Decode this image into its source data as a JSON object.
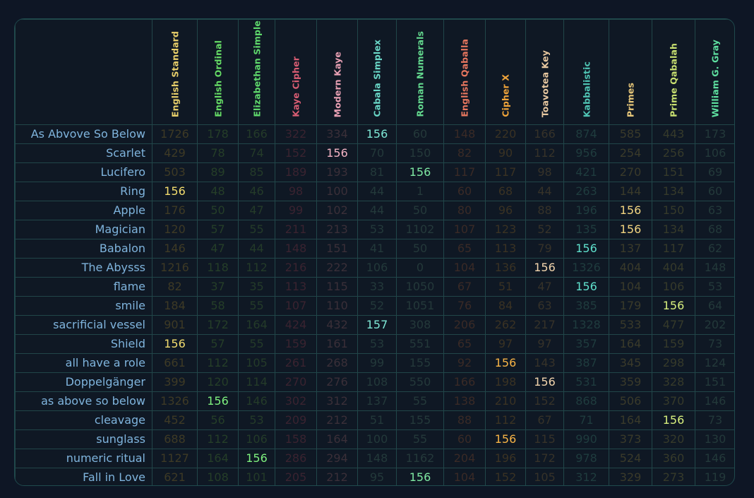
{
  "columns": [
    {
      "name": "English Standard",
      "color": "#e8cf6a",
      "dim": "#3e3a25",
      "hi": "#f2dc6e"
    },
    {
      "name": "English Ordinal",
      "color": "#66dd66",
      "dim": "#253e28",
      "hi": "#7ef07e"
    },
    {
      "name": "Elizabethan Simple",
      "color": "#5fd96c",
      "dim": "#243b29",
      "hi": "#7ef07e"
    },
    {
      "name": "Kaye Cipher",
      "color": "#d85d73",
      "dim": "#3a2330",
      "hi": "#e86b82"
    },
    {
      "name": "Modern Kaye",
      "color": "#e8a0b4",
      "dim": "#3a2f38",
      "hi": "#f4b3c4"
    },
    {
      "name": "Cabala Simplex",
      "color": "#6ad8c8",
      "dim": "#23393a",
      "hi": "#7ee8d6"
    },
    {
      "name": "Roman Numerals",
      "color": "#63d88e",
      "dim": "#24393a",
      "hi": "#7ee8a2"
    },
    {
      "name": "English Qaballa",
      "color": "#e8775f",
      "dim": "#3a2a26",
      "hi": "#f08a72"
    },
    {
      "name": "Cipher X",
      "color": "#f0a43a",
      "dim": "#3a3223",
      "hi": "#f8b446"
    },
    {
      "name": "Toavotea Key",
      "color": "#e8c8a0",
      "dim": "#363229",
      "hi": "#f2d4ac"
    },
    {
      "name": "Kabbalistic",
      "color": "#4fc4b4",
      "dim": "#1f3c3e",
      "hi": "#5fe0cc"
    },
    {
      "name": "Primes",
      "color": "#e8c87a",
      "dim": "#3a3a2a",
      "hi": "#f2d480"
    },
    {
      "name": "Prime Qabalah",
      "color": "#c8e070",
      "dim": "#363a2a",
      "hi": "#d8f07e"
    },
    {
      "name": "William G. Gray",
      "color": "#5ee0a0",
      "dim": "#23393a",
      "hi": "#72f0b0"
    }
  ],
  "rows": [
    {
      "label": "As Abvove So Below",
      "values": [
        "1726",
        "178",
        "166",
        "322",
        "334",
        "156",
        "60",
        "148",
        "220",
        "166",
        "874",
        "585",
        "443",
        "173"
      ],
      "highlight": 5
    },
    {
      "label": "Scarlet",
      "values": [
        "429",
        "78",
        "74",
        "152",
        "156",
        "70",
        "150",
        "82",
        "90",
        "112",
        "956",
        "254",
        "256",
        "106"
      ],
      "highlight": 4
    },
    {
      "label": "Lucifero",
      "values": [
        "503",
        "89",
        "85",
        "189",
        "193",
        "81",
        "156",
        "117",
        "117",
        "98",
        "421",
        "270",
        "151",
        "69"
      ],
      "highlight": 6
    },
    {
      "label": "Ring",
      "values": [
        "156",
        "48",
        "46",
        "98",
        "100",
        "44",
        "1",
        "60",
        "68",
        "44",
        "263",
        "144",
        "134",
        "60"
      ],
      "highlight": 0
    },
    {
      "label": "Apple",
      "values": [
        "176",
        "50",
        "47",
        "99",
        "102",
        "44",
        "50",
        "80",
        "96",
        "88",
        "196",
        "156",
        "150",
        "63"
      ],
      "highlight": 11
    },
    {
      "label": "Magician",
      "values": [
        "120",
        "57",
        "55",
        "211",
        "213",
        "53",
        "1102",
        "107",
        "123",
        "52",
        "135",
        "156",
        "134",
        "68"
      ],
      "highlight": 11
    },
    {
      "label": "Babalon",
      "values": [
        "146",
        "47",
        "44",
        "148",
        "151",
        "41",
        "50",
        "65",
        "113",
        "79",
        "156",
        "137",
        "117",
        "62"
      ],
      "highlight": 10
    },
    {
      "label": "The Abysss",
      "values": [
        "1216",
        "118",
        "112",
        "216",
        "222",
        "106",
        "0",
        "104",
        "136",
        "156",
        "1326",
        "404",
        "404",
        "148"
      ],
      "highlight": 9
    },
    {
      "label": "flame",
      "values": [
        "82",
        "37",
        "35",
        "113",
        "115",
        "33",
        "1050",
        "67",
        "51",
        "47",
        "156",
        "104",
        "106",
        "53"
      ],
      "highlight": 10
    },
    {
      "label": "smile",
      "values": [
        "184",
        "58",
        "55",
        "107",
        "110",
        "52",
        "1051",
        "76",
        "84",
        "63",
        "385",
        "179",
        "156",
        "64"
      ],
      "highlight": 12
    },
    {
      "label": "sacrificial vessel",
      "values": [
        "901",
        "172",
        "164",
        "424",
        "432",
        "157",
        "308",
        "206",
        "262",
        "217",
        "1328",
        "533",
        "477",
        "202"
      ],
      "highlight": 5
    },
    {
      "label": "Shield",
      "values": [
        "156",
        "57",
        "55",
        "159",
        "161",
        "53",
        "551",
        "65",
        "97",
        "97",
        "357",
        "164",
        "159",
        "73"
      ],
      "highlight": 0
    },
    {
      "label": "all have a role",
      "values": [
        "661",
        "112",
        "105",
        "261",
        "268",
        "99",
        "155",
        "92",
        "156",
        "143",
        "387",
        "345",
        "298",
        "124"
      ],
      "highlight": 8
    },
    {
      "label": "Doppelgänger",
      "values": [
        "399",
        "120",
        "114",
        "270",
        "276",
        "108",
        "550",
        "166",
        "198",
        "156",
        "531",
        "359",
        "328",
        "151"
      ],
      "highlight": 9
    },
    {
      "label": "as above so below",
      "values": [
        "1326",
        "156",
        "146",
        "302",
        "312",
        "137",
        "55",
        "138",
        "210",
        "152",
        "868",
        "506",
        "370",
        "146"
      ],
      "highlight": 1
    },
    {
      "label": "cleavage",
      "values": [
        "452",
        "56",
        "53",
        "209",
        "212",
        "51",
        "155",
        "88",
        "112",
        "67",
        "71",
        "164",
        "156",
        "73"
      ],
      "highlight": 12
    },
    {
      "label": "sunglass",
      "values": [
        "688",
        "112",
        "106",
        "158",
        "164",
        "100",
        "55",
        "60",
        "156",
        "115",
        "990",
        "373",
        "320",
        "130"
      ],
      "highlight": 8
    },
    {
      "label": "numeric ritual",
      "values": [
        "1127",
        "164",
        "156",
        "286",
        "294",
        "148",
        "1162",
        "204",
        "196",
        "172",
        "978",
        "524",
        "360",
        "146"
      ],
      "highlight": 2
    },
    {
      "label": "Fall in Love",
      "values": [
        "621",
        "108",
        "101",
        "205",
        "212",
        "95",
        "156",
        "104",
        "152",
        "105",
        "312",
        "329",
        "273",
        "119"
      ],
      "highlight": 6
    }
  ]
}
